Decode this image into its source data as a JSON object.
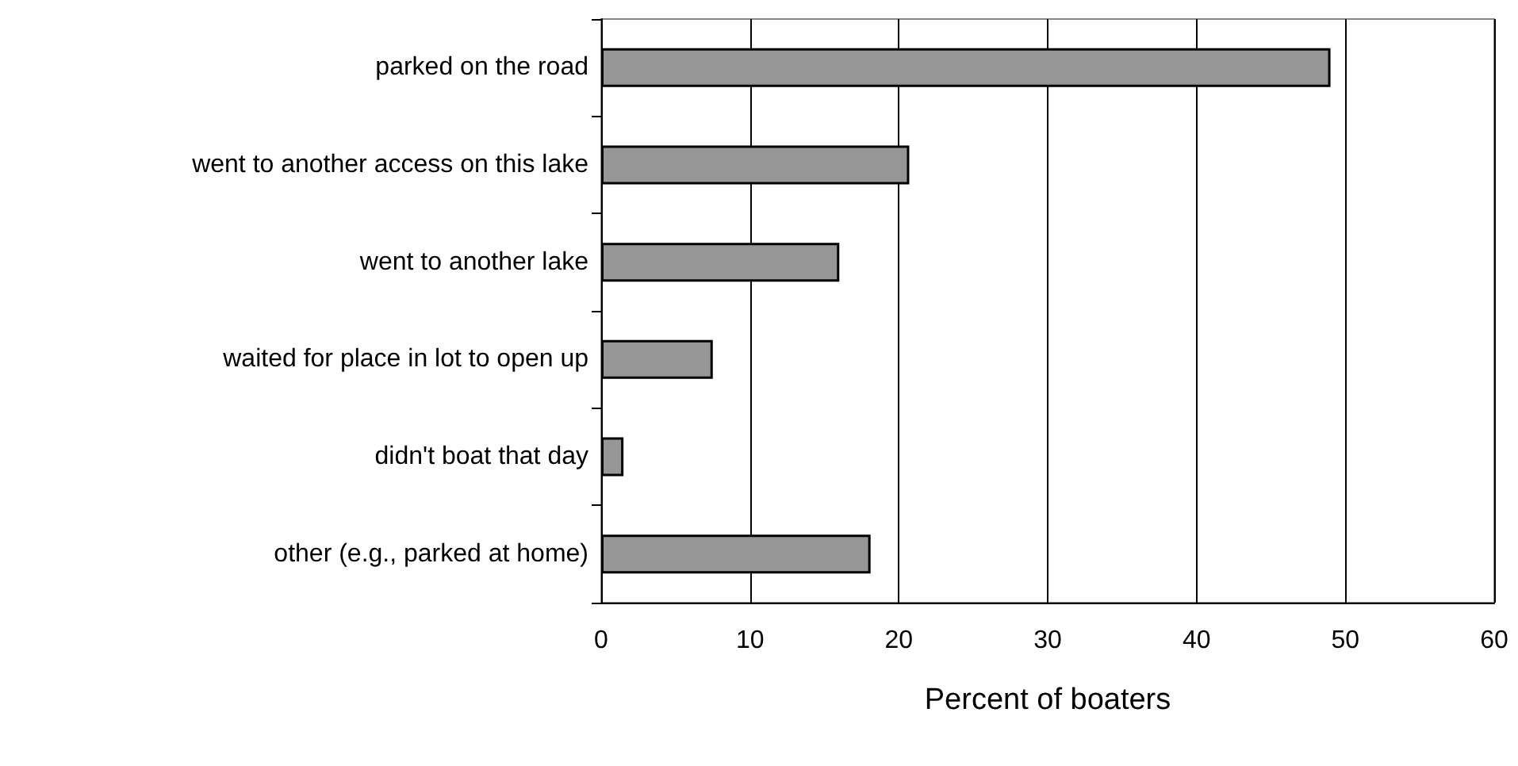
{
  "chart_data": {
    "type": "bar",
    "orientation": "horizontal",
    "xlabel": "Percent of boaters",
    "categories": [
      "parked on the road",
      "went to another access on this lake",
      "went to another lake",
      "waited for place in lot to open up",
      "didn't boat that day",
      "other (e.g., parked at home)"
    ],
    "values": [
      49.0,
      20.7,
      16.0,
      7.5,
      1.5,
      18.1
    ],
    "color": "#969696",
    "xlim": [
      0,
      60
    ],
    "xticks": [
      0,
      10,
      20,
      30,
      40,
      50,
      60
    ],
    "grid": "x"
  }
}
